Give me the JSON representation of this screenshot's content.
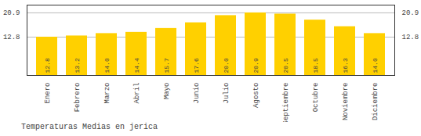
{
  "chart_data": {
    "type": "bar",
    "title": "Temperaturas Medias en jerica",
    "categories": [
      "Enero",
      "Febrero",
      "Marzo",
      "Abril",
      "Mayo",
      "Junio",
      "Julio",
      "Agosto",
      "Septiembre",
      "Octubre",
      "Noviembre",
      "Diciembre"
    ],
    "values": [
      12.8,
      13.2,
      14.0,
      14.4,
      15.7,
      17.6,
      20.0,
      20.9,
      20.5,
      18.5,
      16.3,
      14.0
    ],
    "value_labels": [
      "12.8",
      "13.2",
      "14.0",
      "14.4",
      "15.7",
      "17.6",
      "20.0",
      "20.9",
      "20.5",
      "18.5",
      "16.3",
      "14.0"
    ],
    "color": "#FFD000",
    "ylim": [
      0,
      23.5
    ],
    "yticks": [
      12.8,
      20.9
    ],
    "grid": true,
    "data_labels": true
  }
}
